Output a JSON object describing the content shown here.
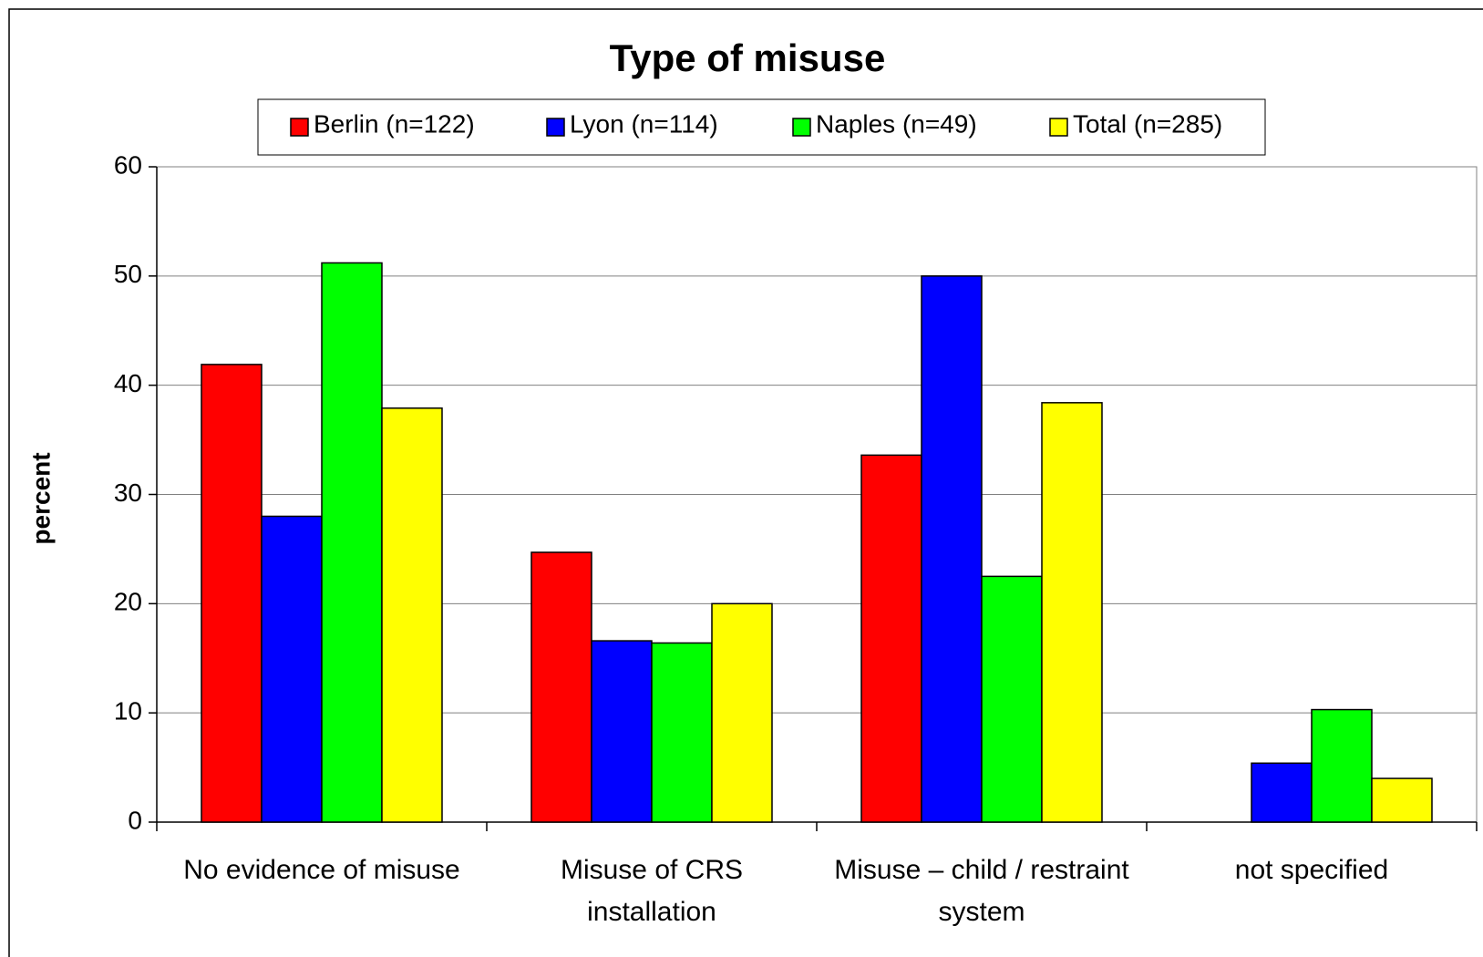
{
  "chart_data": {
    "type": "bar",
    "title": "Type of misuse",
    "y_label": "percent",
    "categories": [
      "No evidence of misuse",
      "Misuse of CRS installation",
      "Misuse – child / restraint system",
      "not specified"
    ],
    "series": [
      {
        "name": "Berlin (n=122)",
        "color": "#ff0000",
        "values": [
          41.9,
          24.7,
          33.6,
          0
        ]
      },
      {
        "name": "Lyon (n=114)",
        "color": "#0000ff",
        "values": [
          28.0,
          16.6,
          50.0,
          5.4
        ]
      },
      {
        "name": "Naples (n=49)",
        "color": "#00ff00",
        "values": [
          51.2,
          16.4,
          22.5,
          10.3
        ]
      },
      {
        "name": "Total (n=285)",
        "color": "#ffff00",
        "values": [
          37.9,
          20.0,
          38.4,
          4.0
        ]
      }
    ],
    "ylim": [
      0,
      60
    ],
    "yticks": [
      0,
      10,
      20,
      30,
      40,
      50,
      60
    ],
    "grid": true,
    "legend": "top"
  }
}
